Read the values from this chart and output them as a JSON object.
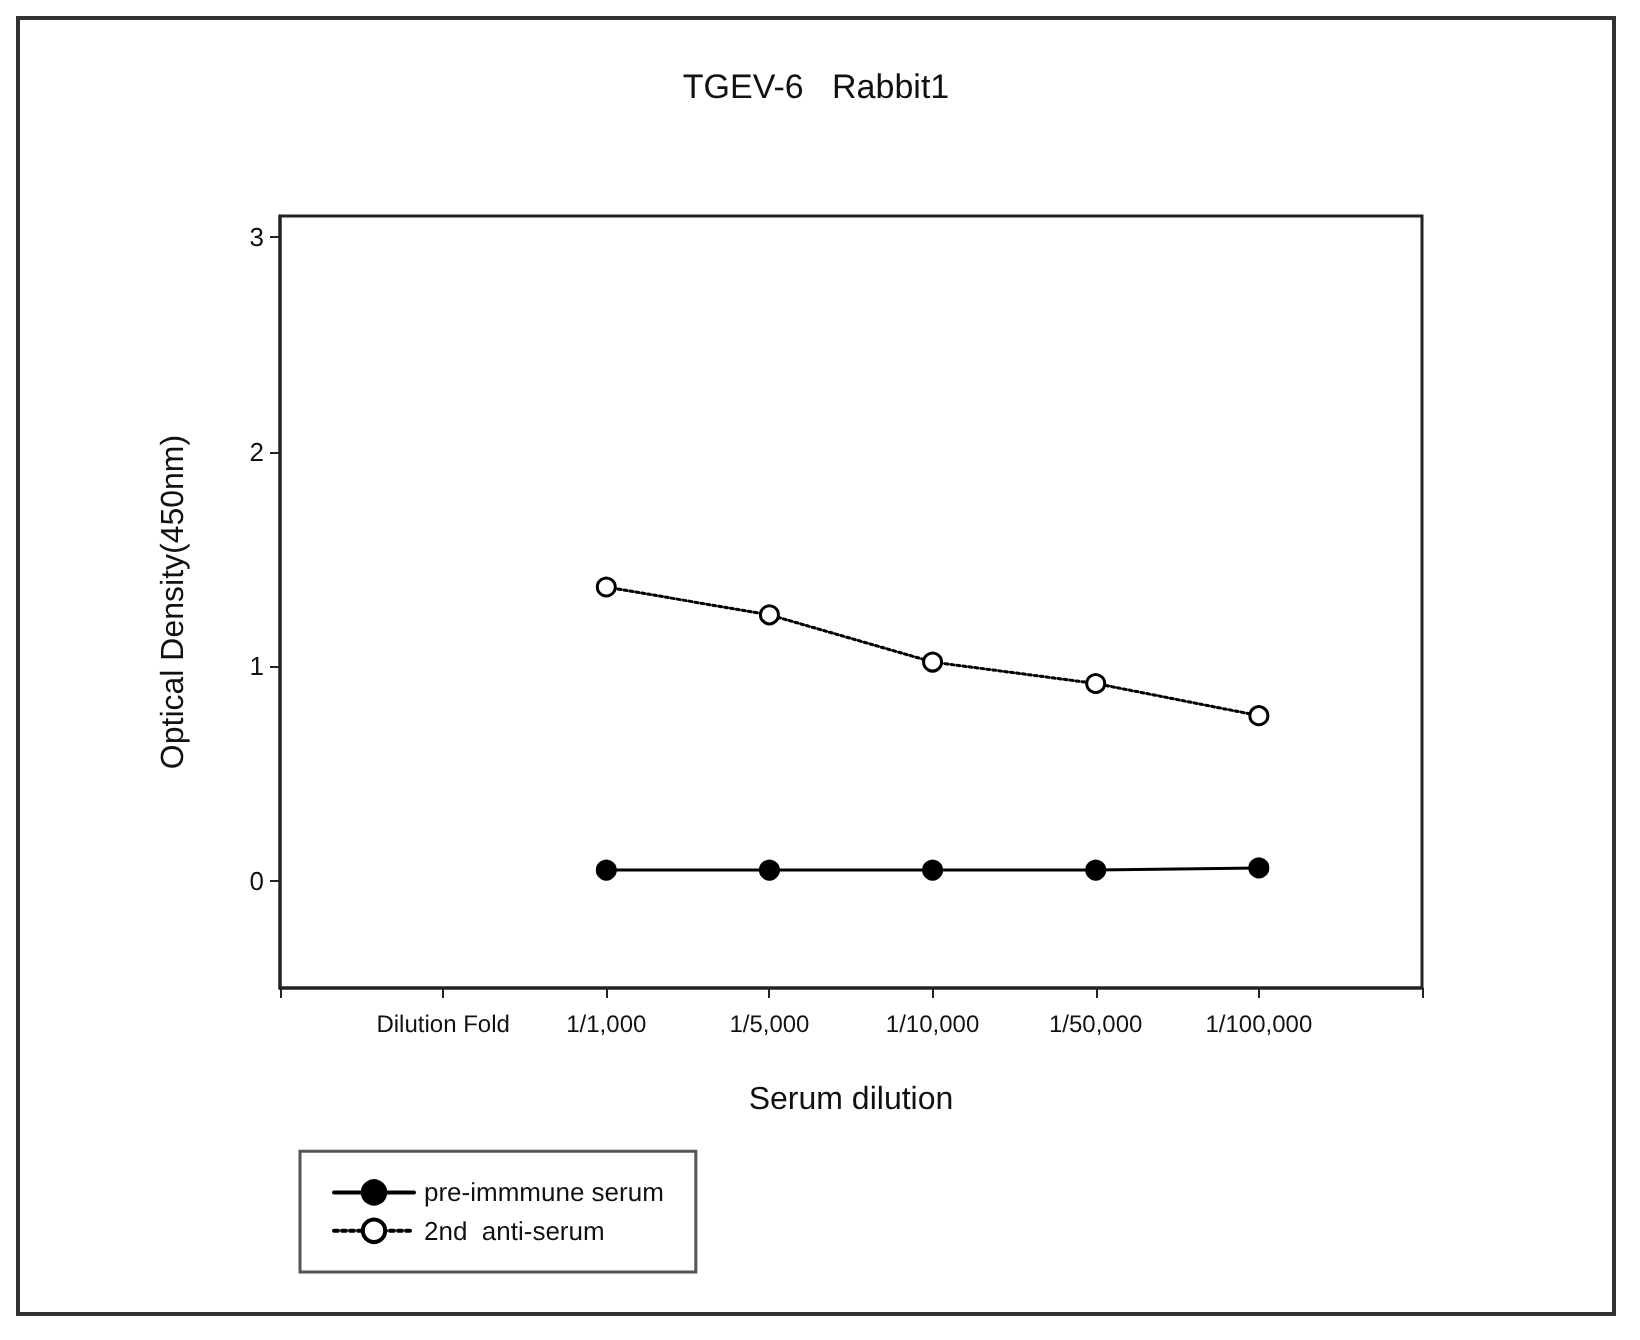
{
  "chart_data": {
    "type": "line",
    "title": "TGEV-6   Rabbit1",
    "xlabel": "Serum dilution",
    "ylabel": "Optical Density(450nm)",
    "categories": [
      null,
      "Dilution Fold",
      "1/1,000",
      "1/5,000",
      "1/10,000",
      "1/50,000",
      "1/100,000",
      null
    ],
    "series": [
      {
        "name": "pre-immmune serum",
        "color": "#000000",
        "line_style": "solid",
        "values": [
          null,
          null,
          0.05,
          0.05,
          0.05,
          0.05,
          0.06,
          null
        ]
      },
      {
        "name": "2nd  anti-serum",
        "color": "#000000",
        "colors": [
          null,
          null,
          "#ffffff",
          "#ffffff",
          "#ffffff",
          "#ffffff",
          "#ffffff",
          null
        ],
        "line_style": "dotted",
        "values": [
          null,
          null,
          1.37,
          1.24,
          1.02,
          0.92,
          0.77,
          null
        ]
      }
    ],
    "ylim": [
      -0.5,
      3.1
    ],
    "yticks": [
      0,
      1,
      2,
      3
    ],
    "grid": false,
    "legend": "bottom left",
    "marker": "circle"
  }
}
